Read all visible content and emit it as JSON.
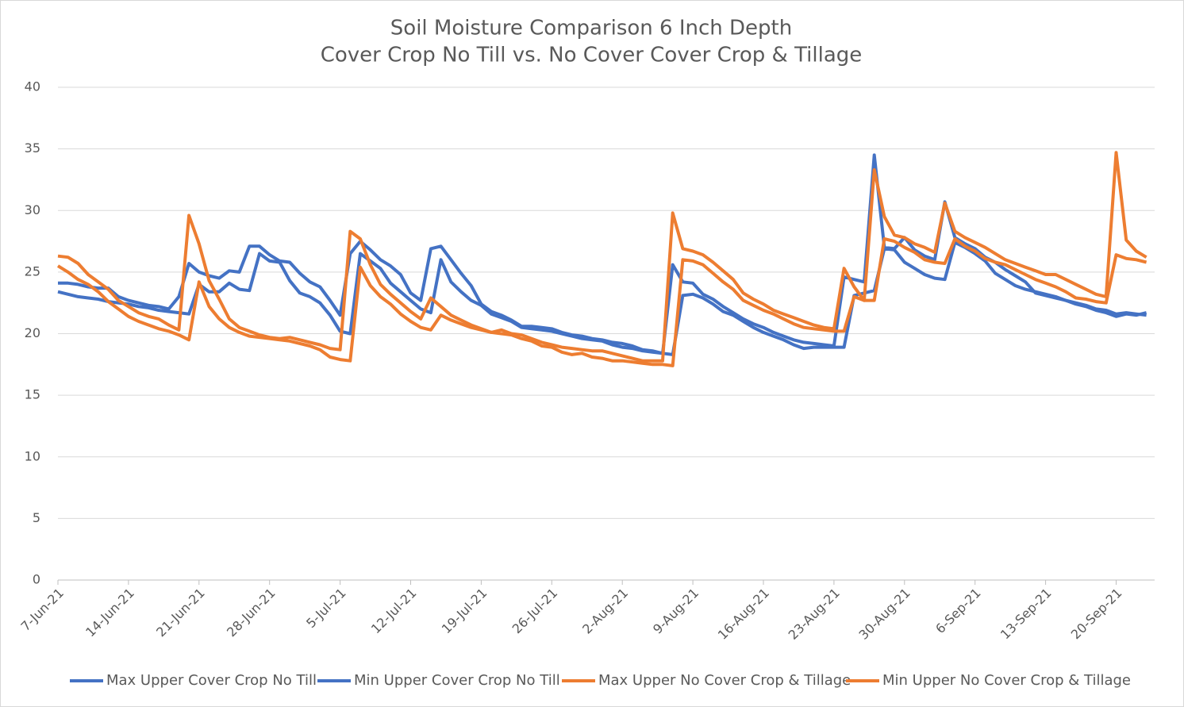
{
  "chart_data": {
    "type": "line",
    "title": "Soil Moisture Comparison 6 Inch Depth",
    "subtitle": "Cover Crop No Till vs. No Cover Cover Crop & Tillage",
    "categories": [
      "7-Jun-21",
      null,
      null,
      null,
      null,
      null,
      null,
      "14-Jun-21",
      null,
      null,
      null,
      null,
      null,
      null,
      "21-Jun-21",
      null,
      null,
      null,
      null,
      null,
      null,
      "28-Jun-21",
      null,
      null,
      null,
      null,
      null,
      null,
      "5-Jul-21",
      null,
      null,
      null,
      null,
      null,
      null,
      "12-Jul-21",
      null,
      null,
      null,
      null,
      null,
      null,
      "19-Jul-21",
      null,
      null,
      null,
      null,
      null,
      null,
      "26-Jul-21",
      null,
      null,
      null,
      null,
      null,
      null,
      "2-Aug-21",
      null,
      null,
      null,
      null,
      null,
      null,
      "9-Aug-21",
      null,
      null,
      null,
      null,
      null,
      null,
      "16-Aug-21",
      null,
      null,
      null,
      null,
      null,
      null,
      "23-Aug-21",
      null,
      null,
      null,
      null,
      null,
      null,
      "30-Aug-21",
      null,
      null,
      null,
      null,
      null,
      null,
      "6-Sep-21",
      null,
      null,
      null,
      null,
      null,
      null,
      "13-Sep-21",
      null,
      null,
      null,
      null,
      null,
      null,
      "20-Sep-21",
      null,
      null,
      null
    ],
    "series": [
      {
        "name": "Max Upper Cover Crop No Till",
        "color": "#4472c4",
        "values": [
          24.1,
          24.1,
          24.0,
          23.8,
          23.7,
          23.7,
          23.0,
          22.7,
          22.5,
          22.3,
          22.2,
          22.0,
          23.0,
          25.7,
          25.0,
          24.7,
          24.5,
          25.1,
          25.0,
          27.1,
          27.1,
          26.4,
          25.9,
          25.8,
          24.9,
          24.2,
          23.8,
          22.7,
          21.5,
          26.5,
          27.5,
          26.8,
          26.0,
          25.5,
          24.8,
          23.3,
          22.7,
          26.9,
          27.1,
          26.0,
          24.9,
          23.9,
          22.4,
          21.8,
          21.5,
          21.1,
          20.6,
          20.6,
          20.5,
          20.4,
          20.1,
          19.9,
          19.8,
          19.6,
          19.5,
          19.3,
          19.2,
          19.0,
          18.7,
          18.6,
          18.4,
          25.6,
          24.2,
          24.1,
          23.2,
          22.8,
          22.2,
          21.7,
          21.2,
          20.8,
          20.5,
          20.1,
          19.8,
          19.5,
          19.3,
          19.2,
          19.1,
          19.0,
          24.6,
          24.4,
          24.2,
          34.5,
          27.0,
          26.9,
          27.8,
          26.8,
          26.3,
          26.0,
          30.7,
          27.8,
          27.3,
          26.9,
          26.2,
          25.8,
          25.2,
          24.7,
          24.2,
          23.3,
          23.1,
          22.9,
          22.7,
          22.5,
          22.3,
          22.0,
          21.9,
          21.6,
          21.7,
          21.6,
          21.5
        ]
      },
      {
        "name": "Min Upper Cover Crop No Till",
        "color": "#4472c4",
        "values": [
          23.4,
          23.2,
          23.0,
          22.9,
          22.8,
          22.6,
          22.5,
          22.4,
          22.2,
          22.1,
          21.9,
          21.8,
          21.7,
          21.6,
          24.0,
          23.4,
          23.4,
          24.1,
          23.6,
          23.5,
          26.5,
          25.9,
          25.8,
          24.3,
          23.3,
          23.0,
          22.5,
          21.5,
          20.2,
          20.0,
          26.5,
          25.9,
          25.3,
          24.1,
          23.4,
          22.7,
          22.0,
          21.7,
          26.0,
          24.2,
          23.4,
          22.7,
          22.3,
          21.6,
          21.3,
          21.0,
          20.5,
          20.4,
          20.3,
          20.2,
          20.0,
          19.8,
          19.6,
          19.5,
          19.4,
          19.1,
          18.9,
          18.8,
          18.6,
          18.5,
          18.4,
          18.3,
          23.1,
          23.2,
          22.9,
          22.4,
          21.8,
          21.5,
          21.0,
          20.5,
          20.1,
          19.8,
          19.5,
          19.1,
          18.8,
          18.9,
          18.9,
          18.9,
          18.9,
          23.1,
          23.3,
          23.5,
          26.9,
          26.8,
          25.8,
          25.3,
          24.8,
          24.5,
          24.4,
          27.4,
          27.0,
          26.5,
          25.9,
          24.9,
          24.4,
          23.9,
          23.6,
          23.4,
          23.2,
          23.0,
          22.7,
          22.4,
          22.2,
          21.9,
          21.7,
          21.4,
          21.6,
          21.5,
          21.7
        ]
      },
      {
        "name": "Max Upper No Cover Crop & Tillage",
        "color": "#ed7d31",
        "values": [
          26.3,
          26.2,
          25.7,
          24.8,
          24.2,
          23.6,
          22.7,
          22.2,
          21.7,
          21.4,
          21.2,
          20.7,
          20.3,
          29.6,
          27.3,
          24.3,
          22.8,
          21.2,
          20.5,
          20.2,
          19.9,
          19.7,
          19.6,
          19.7,
          19.5,
          19.3,
          19.1,
          18.8,
          18.7,
          28.3,
          27.7,
          25.6,
          24.0,
          23.2,
          22.5,
          21.8,
          21.2,
          22.9,
          22.2,
          21.5,
          21.1,
          20.7,
          20.4,
          20.1,
          20.3,
          20.0,
          19.9,
          19.6,
          19.3,
          19.1,
          18.9,
          18.8,
          18.7,
          18.6,
          18.6,
          18.4,
          18.2,
          18.0,
          17.8,
          17.8,
          17.8,
          29.8,
          26.9,
          26.7,
          26.4,
          25.8,
          25.1,
          24.4,
          23.3,
          22.8,
          22.4,
          21.9,
          21.6,
          21.3,
          21.0,
          20.7,
          20.5,
          20.4,
          25.3,
          23.8,
          22.7,
          33.3,
          29.5,
          28.0,
          27.8,
          27.3,
          27.0,
          26.6,
          30.6,
          28.3,
          27.8,
          27.4,
          27.0,
          26.5,
          26.0,
          25.7,
          25.4,
          25.1,
          24.8,
          24.8,
          24.4,
          24.0,
          23.6,
          23.2,
          23.0,
          34.7,
          27.6,
          26.7,
          26.2
        ]
      },
      {
        "name": "Min Upper No Cover Crop & Tillage",
        "color": "#ed7d31",
        "values": [
          25.5,
          25.0,
          24.4,
          24.0,
          23.4,
          22.6,
          22.0,
          21.4,
          21.0,
          20.7,
          20.4,
          20.2,
          19.9,
          19.5,
          24.2,
          22.2,
          21.2,
          20.5,
          20.1,
          19.8,
          19.7,
          19.6,
          19.5,
          19.4,
          19.2,
          19.0,
          18.7,
          18.1,
          17.9,
          17.8,
          25.4,
          23.9,
          23.0,
          22.4,
          21.6,
          21.0,
          20.5,
          20.3,
          21.5,
          21.1,
          20.8,
          20.5,
          20.3,
          20.1,
          20.0,
          19.9,
          19.6,
          19.4,
          19.0,
          18.9,
          18.5,
          18.3,
          18.4,
          18.1,
          18.0,
          17.8,
          17.8,
          17.7,
          17.6,
          17.5,
          17.5,
          17.4,
          26.0,
          25.9,
          25.6,
          24.9,
          24.2,
          23.6,
          22.7,
          22.3,
          21.9,
          21.6,
          21.2,
          20.8,
          20.5,
          20.4,
          20.3,
          20.2,
          20.2,
          23.0,
          22.7,
          22.7,
          27.7,
          27.5,
          27.0,
          26.6,
          26.0,
          25.8,
          25.7,
          27.7,
          27.1,
          26.7,
          26.1,
          25.8,
          25.6,
          25.2,
          24.8,
          24.4,
          24.1,
          23.8,
          23.4,
          22.9,
          22.8,
          22.6,
          22.5,
          26.4,
          26.1,
          26.0,
          25.8
        ]
      }
    ],
    "ylim": [
      0,
      40
    ],
    "yticks": [
      0,
      5,
      10,
      15,
      20,
      25,
      30,
      35,
      40
    ],
    "grid": true,
    "legend": "bottom"
  }
}
